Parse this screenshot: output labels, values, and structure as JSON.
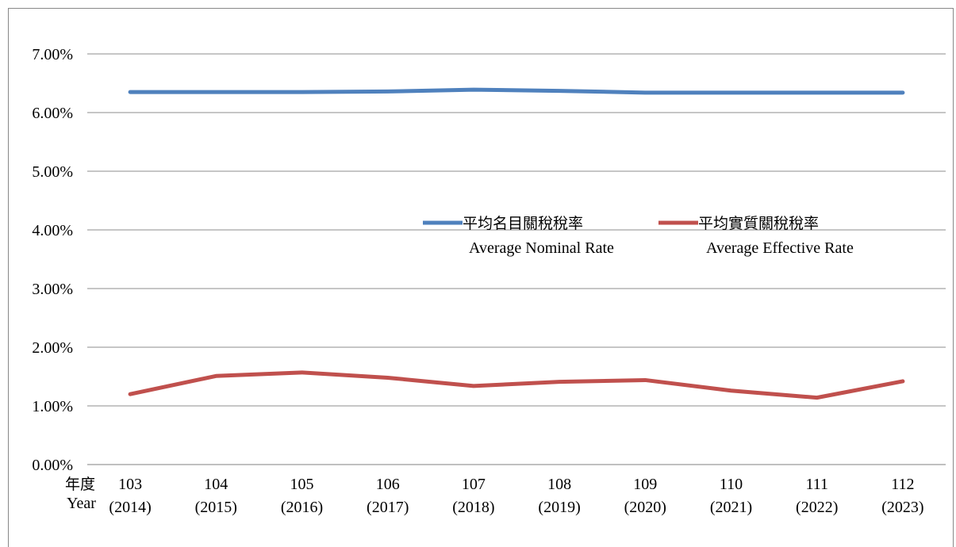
{
  "chart_data": {
    "type": "line",
    "xlabel_zh": "年度",
    "xlabel_en": "Year",
    "categories": [
      {
        "roc": "103",
        "year": "(2014)"
      },
      {
        "roc": "104",
        "year": "(2015)"
      },
      {
        "roc": "105",
        "year": "(2016)"
      },
      {
        "roc": "106",
        "year": "(2017)"
      },
      {
        "roc": "107",
        "year": "(2018)"
      },
      {
        "roc": "108",
        "year": "(2019)"
      },
      {
        "roc": "109",
        "year": "(2020)"
      },
      {
        "roc": "110",
        "year": "(2021)"
      },
      {
        "roc": "111",
        "year": "(2022)"
      },
      {
        "roc": "112",
        "year": "(2023)"
      }
    ],
    "yticks": [
      "0.00%",
      "1.00%",
      "2.00%",
      "3.00%",
      "4.00%",
      "5.00%",
      "6.00%",
      "7.00%"
    ],
    "ylim": [
      0,
      7
    ],
    "grid": true,
    "legend_position": "center-right",
    "series": [
      {
        "name_zh": "平均名目關稅稅率",
        "name_en": "Average Nominal Rate",
        "color": "#4f81bd",
        "values": [
          6.35,
          6.35,
          6.35,
          6.36,
          6.39,
          6.37,
          6.34,
          6.34,
          6.34,
          6.34
        ]
      },
      {
        "name_zh": "平均實質關稅稅率",
        "name_en": "Average Effective Rate",
        "color": "#c0504d",
        "values": [
          1.2,
          1.51,
          1.57,
          1.48,
          1.34,
          1.41,
          1.44,
          1.26,
          1.14,
          1.42
        ]
      }
    ]
  }
}
